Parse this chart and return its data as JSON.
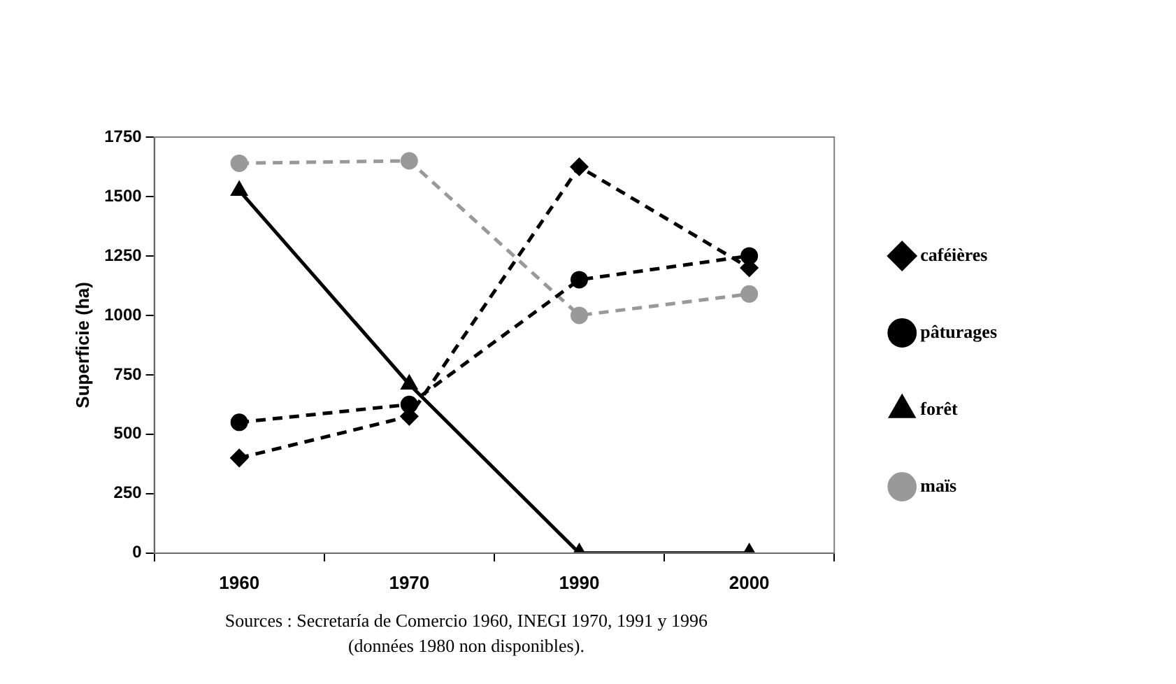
{
  "chart_data": {
    "type": "line",
    "ylabel": "Superficie (ha)",
    "categories": [
      "1960",
      "1970",
      "1990",
      "2000"
    ],
    "ylim": [
      0,
      1750
    ],
    "yticks": [
      0,
      250,
      500,
      750,
      1000,
      1250,
      1500,
      1750
    ],
    "grid": false,
    "legend": "right",
    "series": [
      {
        "name": "caféières",
        "color": "#000000",
        "values": [
          400,
          575,
          1625,
          1200
        ],
        "line_style": "dashed",
        "marker": "diamond"
      },
      {
        "name": "pâturages",
        "color": "#000000",
        "values": [
          550,
          625,
          1150,
          1250
        ],
        "line_style": "dashed",
        "marker": "circle"
      },
      {
        "name": "forêt",
        "color": "#000000",
        "values": [
          1525,
          710,
          0,
          0
        ],
        "line_style": "solid",
        "marker": "triangle"
      },
      {
        "name": "maïs",
        "color": "#999999",
        "values": [
          1640,
          1650,
          1000,
          1090
        ],
        "line_style": "dashed",
        "marker": "circle"
      }
    ],
    "annotations": [
      "Sources : Secretaría de Comercio 1960, INEGI 1970, 1991 y 1996",
      "(données 1980 non disponibles)."
    ]
  }
}
